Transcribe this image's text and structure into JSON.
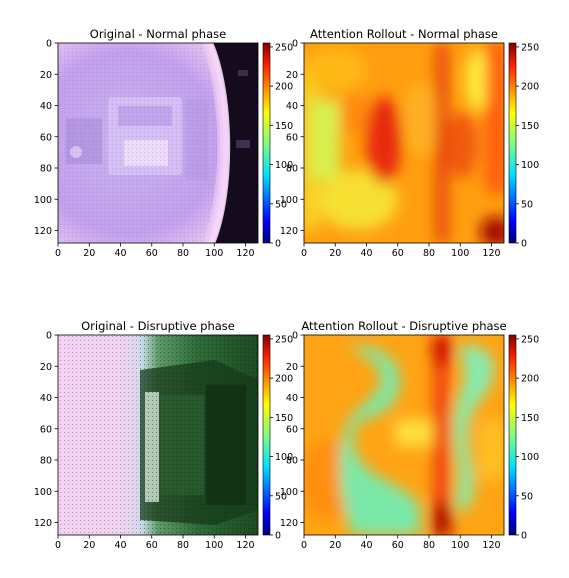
{
  "chart_data": [
    {
      "type": "heatmap",
      "title": "Original - Normal phase",
      "xlim": [
        0,
        128
      ],
      "ylim": [
        128,
        0
      ],
      "x_ticks": [
        "0",
        "20",
        "40",
        "60",
        "80",
        "100",
        "120"
      ],
      "y_ticks": [
        "0",
        "20",
        "40",
        "60",
        "80",
        "100",
        "120"
      ],
      "colorbar": {
        "range": [
          0,
          255
        ],
        "ticks": [
          "0",
          "50",
          "100",
          "150",
          "200",
          "250"
        ],
        "colormap": "jet"
      },
      "image_content": "camera frame: lavender/violet plasma glow with machinery, bright pink edge ring, dark right side",
      "colors": {
        "base": "#c4a4ee",
        "glow": "#efc9f2",
        "dark": "#120c1a"
      }
    },
    {
      "type": "heatmap",
      "title": "Attention Rollout - Normal phase",
      "xlim": [
        0,
        128
      ],
      "ylim": [
        128,
        0
      ],
      "x_ticks": [
        "0",
        "20",
        "40",
        "60",
        "80",
        "100",
        "120"
      ],
      "y_ticks": [
        "0",
        "20",
        "40",
        "60",
        "80",
        "100",
        "120"
      ],
      "colorbar": {
        "range": [
          0,
          255
        ],
        "ticks": [
          "0",
          "50",
          "100",
          "150",
          "200",
          "250"
        ],
        "colormap": "jet"
      },
      "attention_level": "mostly orange/yellow with red hot spots near x≈55, y≈45–90, vertical red band at x≈85, dark red at x≈125, y≈120",
      "colors": {
        "base": "#ff9a08",
        "hot": "#e01508",
        "cool": "#c8f040"
      }
    },
    {
      "type": "heatmap",
      "title": "Original - Disruptive phase",
      "xlim": [
        0,
        128
      ],
      "ylim": [
        128,
        0
      ],
      "x_ticks": [
        "0",
        "20",
        "40",
        "60",
        "80",
        "100",
        "120"
      ],
      "y_ticks": [
        "0",
        "20",
        "40",
        "60",
        "80",
        "100",
        "120"
      ],
      "colorbar": {
        "range": [
          0,
          255
        ],
        "ticks": [
          "0",
          "50",
          "100",
          "150",
          "200",
          "250"
        ],
        "colormap": "jet"
      },
      "image_content": "camera frame: pale pink flash on left half, dark green machinery on right half",
      "colors": {
        "flash": "#f6d2f4",
        "green": "#2e6a35",
        "dark": "#0e2a12"
      }
    },
    {
      "type": "heatmap",
      "title": "Attention Rollout - Disruptive phase",
      "xlim": [
        0,
        128
      ],
      "ylim": [
        128,
        0
      ],
      "x_ticks": [
        "0",
        "20",
        "40",
        "60",
        "80",
        "100",
        "120"
      ],
      "y_ticks": [
        "0",
        "20",
        "40",
        "60",
        "80",
        "100",
        "120"
      ],
      "colorbar": {
        "range": [
          0,
          255
        ],
        "ticks": [
          "0",
          "50",
          "100",
          "150",
          "200",
          "250"
        ],
        "colormap": "jet"
      },
      "attention_level": "orange/yellow background with cyan-green S-shaped low-attention regions, red vertical band at x≈85",
      "colors": {
        "base": "#ffa010",
        "hot": "#e01508",
        "cool": "#6fe8a8"
      }
    }
  ]
}
